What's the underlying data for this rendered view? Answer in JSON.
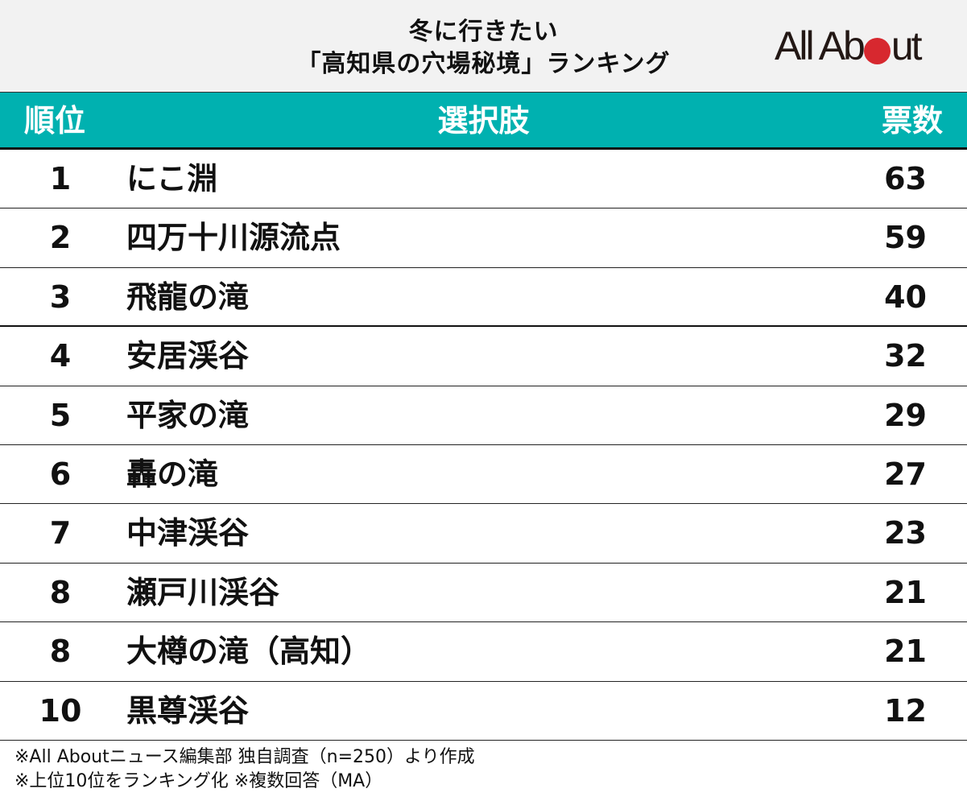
{
  "title": {
    "line1": "冬に行きたい",
    "line2": "「高知県の穴場秘境」ランキング"
  },
  "logo": {
    "text_before": "All Ab",
    "text_after": "ut",
    "dot_color": "#d7282f"
  },
  "colors": {
    "header_bg": "#00b1b0",
    "title_bg": "#f2f2f2"
  },
  "table": {
    "headers": {
      "rank": "順位",
      "choice": "選択肢",
      "votes": "票数"
    },
    "rows": [
      {
        "rank": "1",
        "name": "にこ淵",
        "votes": "63"
      },
      {
        "rank": "2",
        "name": "四万十川源流点",
        "votes": "59"
      },
      {
        "rank": "3",
        "name": "飛龍の滝",
        "votes": "40"
      },
      {
        "rank": "4",
        "name": "安居渓谷",
        "votes": "32"
      },
      {
        "rank": "5",
        "name": "平家の滝",
        "votes": "29"
      },
      {
        "rank": "6",
        "name": "轟の滝",
        "votes": "27"
      },
      {
        "rank": "7",
        "name": "中津渓谷",
        "votes": "23"
      },
      {
        "rank": "8",
        "name": "瀬戸川渓谷",
        "votes": "21"
      },
      {
        "rank": "8",
        "name": "大樽の滝（高知）",
        "votes": "21"
      },
      {
        "rank": "10",
        "name": "黒尊渓谷",
        "votes": "12"
      }
    ]
  },
  "notes": {
    "line1": "※All Aboutニュース編集部 独自調査（n=250）より作成",
    "line2": "※上位10位をランキング化 ※複数回答（MA）"
  }
}
